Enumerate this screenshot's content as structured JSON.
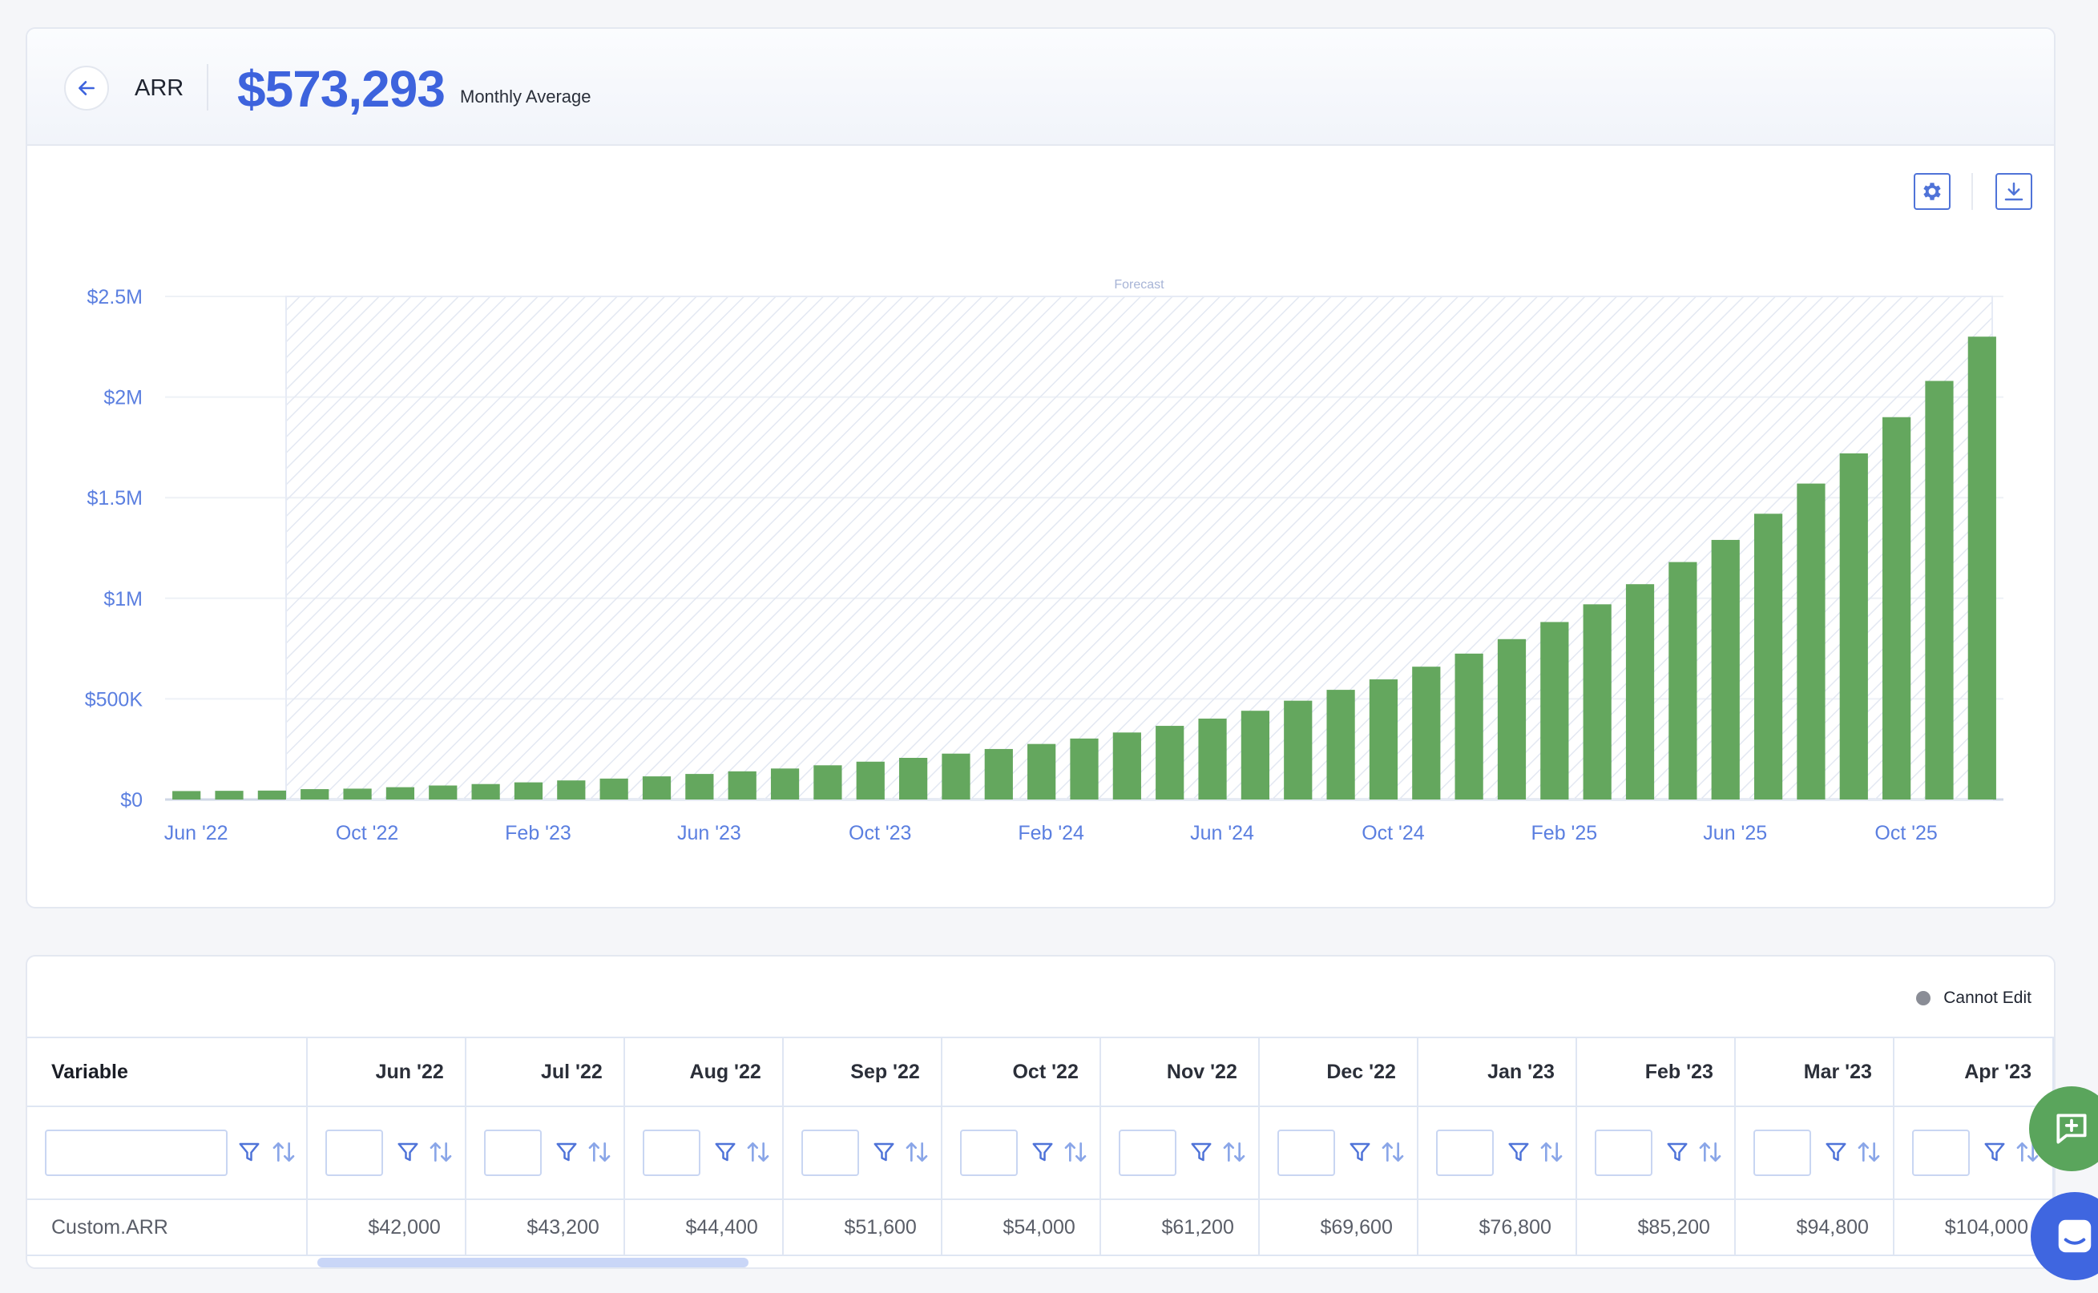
{
  "header": {
    "title": "ARR",
    "value": "$573,293",
    "value_subtitle": "Monthly Average"
  },
  "colors": {
    "accent": "#3d63dd",
    "bar": "#64a75e",
    "axis_label": "#5b7fe0",
    "forecast_region": "#e6ebf5"
  },
  "icons": {
    "back": "arrow-left-icon",
    "settings": "gear-icon",
    "download": "download-icon",
    "filter": "filter-icon",
    "sort": "sort-icon",
    "feedback": "feedback-plus-icon",
    "chat": "chat-icon"
  },
  "chart_data": {
    "type": "bar",
    "ylim": [
      0,
      2500000
    ],
    "y_ticks": [
      {
        "value": 0,
        "label": "$0"
      },
      {
        "value": 500000,
        "label": "$500K"
      },
      {
        "value": 1000000,
        "label": "$1M"
      },
      {
        "value": 1500000,
        "label": "$1.5M"
      },
      {
        "value": 2000000,
        "label": "$2M"
      },
      {
        "value": 2500000,
        "label": "$2.5M"
      }
    ],
    "x_tick_labels": [
      "Jun '22",
      "Oct '22",
      "Feb '23",
      "Jun '23",
      "Oct '23",
      "Feb '24",
      "Jun '24",
      "Oct '24",
      "Feb '25",
      "Jun '25",
      "Oct '25"
    ],
    "x_tick_every": 4,
    "forecast_label": "Forecast",
    "forecast_start_index": 3,
    "grid": true,
    "categories": [
      "Jun '22",
      "Jul '22",
      "Aug '22",
      "Sep '22",
      "Oct '22",
      "Nov '22",
      "Dec '22",
      "Jan '23",
      "Feb '23",
      "Mar '23",
      "Apr '23",
      "May '23",
      "Jun '23",
      "Jul '23",
      "Aug '23",
      "Sep '23",
      "Oct '23",
      "Nov '23",
      "Dec '23",
      "Jan '24",
      "Feb '24",
      "Mar '24",
      "Apr '24",
      "May '24",
      "Jun '24",
      "Jul '24",
      "Aug '24",
      "Sep '24",
      "Oct '24",
      "Nov '24",
      "Dec '24",
      "Jan '25",
      "Feb '25",
      "Mar '25",
      "Apr '25",
      "May '25",
      "Jun '25",
      "Jul '25",
      "Aug '25",
      "Sep '25",
      "Oct '25",
      "Nov '25",
      "Dec '25"
    ],
    "values": [
      42000,
      43200,
      44400,
      51600,
      54000,
      61200,
      69600,
      76800,
      85200,
      94800,
      104000,
      115000,
      127000,
      140000,
      154000,
      170000,
      188000,
      207000,
      228000,
      251000,
      276000,
      303000,
      333000,
      366000,
      402000,
      441000,
      491000,
      545000,
      597000,
      660000,
      725000,
      797000,
      882000,
      970000,
      1070000,
      1180000,
      1290000,
      1420000,
      1570000,
      1720000,
      1900000,
      2080000,
      2300000
    ]
  },
  "table": {
    "legend_label": "Cannot Edit",
    "first_column_header": "Variable",
    "month_headers": [
      "Jun '22",
      "Jul '22",
      "Aug '22",
      "Sep '22",
      "Oct '22",
      "Nov '22",
      "Dec '22",
      "Jan '23",
      "Feb '23",
      "Mar '23",
      "Apr '23"
    ],
    "rows": [
      {
        "name": "Custom.ARR",
        "values": [
          "$42,000",
          "$43,200",
          "$44,400",
          "$51,600",
          "$54,000",
          "$61,200",
          "$69,600",
          "$76,800",
          "$85,200",
          "$94,800",
          "$104,000"
        ]
      }
    ]
  }
}
